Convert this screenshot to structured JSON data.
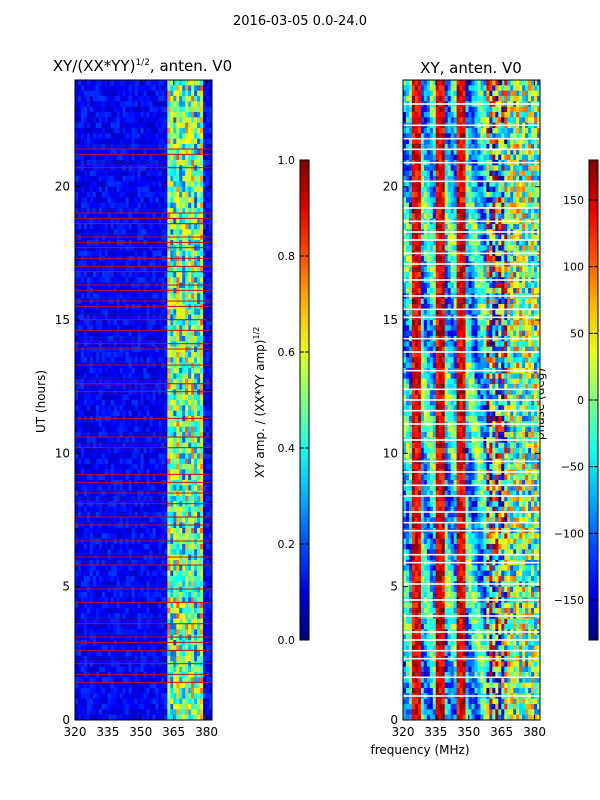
{
  "figure_title": "2016-03-05 0.0-24.0",
  "chart_data": [
    {
      "type": "heatmap",
      "title_prefix": "XY/(XX*YY)",
      "title_exponent": "1/2",
      "title_suffix": ", anten. V0",
      "xlabel": "",
      "ylabel": "UT (hours)",
      "xlim": [
        320,
        382.5
      ],
      "ylim": [
        0,
        24
      ],
      "xticks": [
        320,
        335,
        350,
        365,
        380
      ],
      "yticks": [
        0,
        5,
        10,
        15,
        20
      ],
      "colorbar": {
        "label_prefix": "XY amp. / (XX*YY amp)",
        "label_exponent": "1/2",
        "range": [
          0.0,
          1.0
        ],
        "ticks": [
          "0.0",
          "0.2",
          "0.4",
          "0.6",
          "0.8",
          "1.0"
        ],
        "cmap": "jet"
      },
      "bad_time_rows": [
        1.4,
        1.7,
        2.1,
        2.6,
        2.9,
        3.1,
        3.6,
        4.4,
        4.9,
        5.8,
        6.1,
        6.7,
        7.3,
        7.6,
        8.1,
        8.5,
        8.9,
        9.2,
        10.2,
        10.6,
        11.3,
        12.3,
        12.6,
        13.3,
        13.9,
        14.1,
        14.6,
        15.0,
        15.5,
        15.7,
        16.1,
        16.3,
        16.8,
        17.0,
        17.3,
        17.7,
        17.9,
        18.1,
        18.6,
        18.8,
        19.0,
        20.7,
        21.2,
        21.4
      ],
      "notes": "Amplitude mostly low (~0.05-0.15) below 362 MHz; broadband structure 362-378 MHz with values ~0.3-0.6"
    },
    {
      "type": "heatmap",
      "title": "XY, anten. V0",
      "xlabel": "frequency (MHz)",
      "ylabel": "",
      "xlim": [
        320,
        382.5
      ],
      "ylim": [
        0,
        24
      ],
      "xticks": [
        320,
        335,
        350,
        365,
        380
      ],
      "yticks": [
        0,
        5,
        10,
        15,
        20
      ],
      "colorbar": {
        "label": "phase (deg)",
        "range": [
          -180,
          180
        ],
        "ticks": [
          "-150",
          "-100",
          "-50",
          "0",
          "50",
          "100",
          "150"
        ],
        "cmap": "jet"
      },
      "hot_phase_bands_mhz": [
        326,
        337,
        346
      ],
      "bad_time_rows": [
        0.9,
        1.6,
        2.3,
        2.6,
        3.0,
        3.3,
        3.9,
        4.5,
        5.1,
        5.9,
        6.2,
        7.1,
        7.4,
        7.8,
        8.4,
        8.8,
        9.3,
        9.7,
        10.5,
        11.1,
        11.6,
        12.0,
        12.4,
        13.1,
        13.8,
        14.3,
        15.1,
        15.4,
        15.9,
        16.5,
        17.1,
        17.5,
        18.0,
        18.3,
        18.7,
        19.2,
        20.2,
        20.9,
        21.4,
        21.8,
        22.3,
        23.1
      ]
    }
  ]
}
